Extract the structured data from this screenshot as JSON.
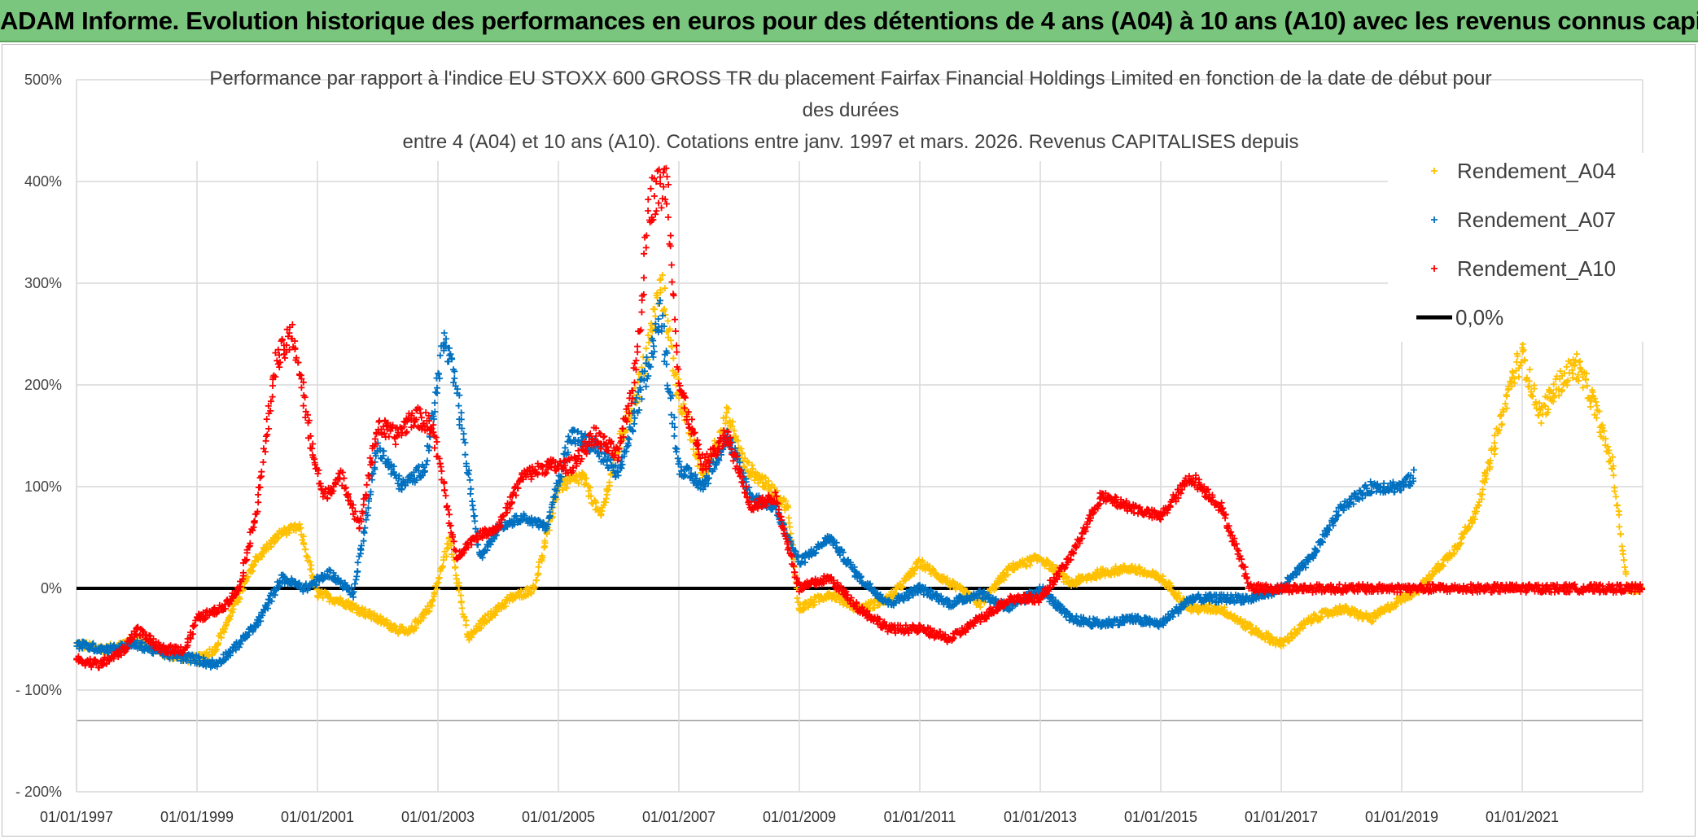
{
  "banner": {
    "text": "ADAM Informe. Evolution historique des performances en euros pour des détentions de 4 ans (A04) à 10 ans (A10) avec les revenus connus capitalisés"
  },
  "colors": {
    "banner_bg": "#7bc67e",
    "a04": "#ffc000",
    "a07": "#0070c0",
    "a10": "#ff0000",
    "zero": "#000000",
    "grid": "#d9d9d9"
  },
  "chart_data": {
    "type": "scatter",
    "title_lines": [
      "Performance par rapport à l'indice EU STOXX 600 GROSS TR  du placement Fairfax Financial Holdings Limited en fonction de la date de début pour",
      "des durées",
      "entre 4 (A04) et 10 ans (A10). Cotations entre janv. 1997 et mars. 2026. Revenus CAPITALISES depuis"
    ],
    "x_range": [
      1997.0,
      2023.0
    ],
    "ylim": [
      -200,
      500
    ],
    "y_ticks": [
      500,
      400,
      300,
      200,
      100,
      0,
      -100,
      -200
    ],
    "y_tick_labels": [
      "500%",
      "400%",
      "300%",
      "200%",
      "100%",
      "0%",
      "- 100%",
      "- 200%"
    ],
    "x_ticks": [
      1997,
      1999,
      2001,
      2003,
      2005,
      2007,
      2009,
      2011,
      2013,
      2015,
      2017,
      2019,
      2021
    ],
    "x_tick_labels": [
      "01/01/1997",
      "01/01/1999",
      "01/01/2001",
      "01/01/2003",
      "01/01/2005",
      "01/01/2007",
      "01/01/2009",
      "01/01/2011",
      "01/01/2013",
      "01/01/2015",
      "01/01/2017",
      "01/01/2019",
      "01/01/2021"
    ],
    "legend_position": "top-right",
    "series": [
      {
        "name": "Rendement_A04",
        "color": "#ffc000",
        "x": [
          1997.0,
          1997.5,
          1998.0,
          1998.5,
          1999.0,
          1999.3,
          1999.6,
          2000.0,
          2000.4,
          2000.7,
          2001.0,
          2001.5,
          2002.0,
          2002.5,
          2002.9,
          2003.2,
          2003.5,
          2003.8,
          2004.2,
          2004.6,
          2005.0,
          2005.4,
          2005.7,
          2006.0,
          2006.4,
          2006.7,
          2007.0,
          2007.4,
          2007.8,
          2008.1,
          2008.5,
          2008.8,
          2009.0,
          2009.5,
          2010.0,
          2010.5,
          2011.0,
          2011.5,
          2012.0,
          2012.5,
          2013.0,
          2013.5,
          2014.0,
          2014.5,
          2015.0,
          2015.5,
          2016.0,
          2016.5,
          2017.0,
          2017.5,
          2018.0,
          2018.5,
          2019.0,
          2019.3,
          2019.6,
          2019.9,
          2020.2,
          2020.5,
          2020.8,
          2021.0,
          2021.3,
          2021.6,
          2021.9,
          2022.2,
          2022.5,
          2022.75,
          2023.0
        ],
        "y": [
          -55,
          -60,
          -50,
          -65,
          -70,
          -60,
          -20,
          30,
          55,
          60,
          -5,
          -15,
          -30,
          -45,
          -15,
          50,
          -50,
          -30,
          -10,
          0,
          100,
          110,
          70,
          140,
          210,
          300,
          190,
          110,
          170,
          120,
          100,
          80,
          -20,
          -5,
          -20,
          -10,
          25,
          5,
          -15,
          20,
          30,
          5,
          15,
          20,
          10,
          -20,
          -20,
          -40,
          -55,
          -30,
          -20,
          -30,
          -10,
          0,
          20,
          40,
          70,
          130,
          200,
          230,
          170,
          200,
          220,
          180,
          120,
          0,
          0
        ]
      },
      {
        "name": "Rendement_A07",
        "color": "#0070c0",
        "x": [
          1997.0,
          1997.5,
          1998.0,
          1998.5,
          1999.0,
          1999.3,
          1999.6,
          2000.0,
          2000.4,
          2000.8,
          2001.2,
          2001.6,
          2002.0,
          2002.4,
          2002.8,
          2003.1,
          2003.3,
          2003.7,
          2004.0,
          2004.4,
          2004.8,
          2005.2,
          2005.6,
          2006.0,
          2006.4,
          2006.7,
          2007.0,
          2007.4,
          2007.8,
          2008.2,
          2008.6,
          2009.0,
          2009.5,
          2010.0,
          2010.5,
          2011.0,
          2011.5,
          2012.0,
          2012.5,
          2013.0,
          2013.5,
          2014.0,
          2014.5,
          2015.0,
          2015.5,
          2016.0,
          2016.5,
          2017.0,
          2017.5,
          2018.0,
          2018.5,
          2019.0,
          2019.2
        ],
        "y": [
          -55,
          -60,
          -55,
          -65,
          -70,
          -75,
          -60,
          -35,
          10,
          0,
          15,
          -5,
          140,
          100,
          120,
          245,
          200,
          30,
          60,
          70,
          60,
          150,
          140,
          110,
          200,
          270,
          120,
          100,
          150,
          90,
          80,
          25,
          50,
          10,
          -15,
          0,
          -15,
          -5,
          -20,
          0,
          -30,
          -35,
          -30,
          -35,
          -10,
          -10,
          -10,
          0,
          30,
          80,
          100,
          100,
          110
        ]
      },
      {
        "name": "Rendement_A10",
        "color": "#ff0000",
        "x": [
          1997.0,
          1997.4,
          1997.8,
          1998.0,
          1998.4,
          1998.8,
          1999.0,
          1999.4,
          1999.7,
          2000.0,
          2000.3,
          2000.6,
          2000.9,
          2001.1,
          2001.4,
          2001.7,
          2002.0,
          2002.3,
          2002.6,
          2002.9,
          2003.1,
          2003.3,
          2003.6,
          2004.0,
          2004.4,
          2004.8,
          2005.2,
          2005.6,
          2006.0,
          2006.3,
          2006.5,
          2006.8,
          2007.0,
          2007.4,
          2007.8,
          2008.2,
          2008.6,
          2009.0,
          2009.5,
          2010.0,
          2010.5,
          2011.0,
          2011.5,
          2012.0,
          2012.5,
          2013.0,
          2013.5,
          2014.0,
          2014.5,
          2015.0,
          2015.5,
          2016.0,
          2016.5,
          2017.0,
          2018.0,
          2019.0,
          2020.0,
          2021.0,
          2022.0,
          2023.0
        ],
        "y": [
          -70,
          -75,
          -60,
          -40,
          -60,
          -60,
          -30,
          -20,
          0,
          80,
          220,
          250,
          140,
          90,
          110,
          60,
          160,
          150,
          170,
          160,
          100,
          30,
          50,
          60,
          110,
          120,
          120,
          150,
          130,
          220,
          380,
          400,
          200,
          120,
          150,
          80,
          90,
          0,
          10,
          -20,
          -40,
          -40,
          -50,
          -30,
          -10,
          -10,
          30,
          90,
          80,
          70,
          110,
          80,
          0,
          0,
          0,
          0,
          0,
          0,
          0,
          0
        ]
      },
      {
        "name": "0,0%",
        "color": "#000000",
        "x": [
          1997.0,
          2016.4
        ],
        "y": [
          0,
          0
        ]
      }
    ]
  }
}
